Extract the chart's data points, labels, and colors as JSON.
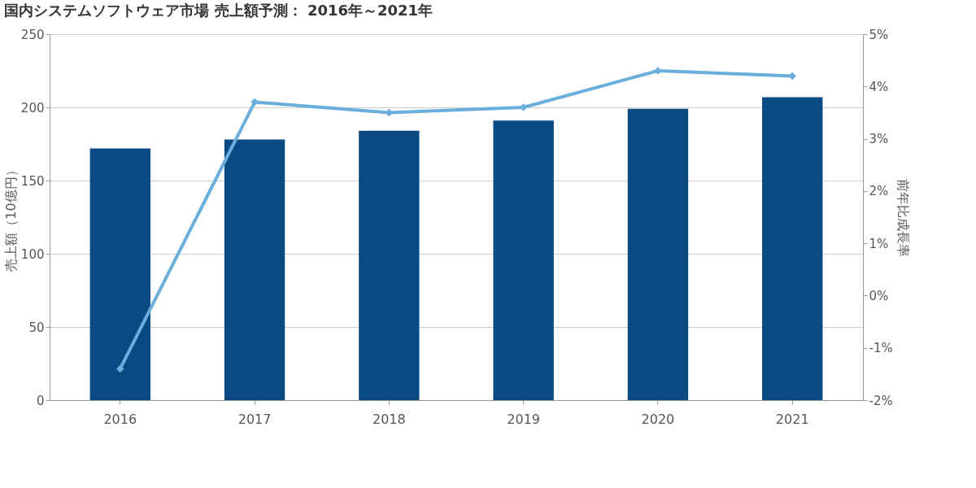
{
  "chart_data": {
    "type": "bar",
    "title": "国内システムソフトウェア市場 売上額予測： 2016年～2021年",
    "ylabel": "売上額（10億円）",
    "y2label": "前年比成長率",
    "categories": [
      "2016",
      "2017",
      "2018",
      "2019",
      "2020",
      "2021"
    ],
    "series": [
      {
        "color": "#0a4a82",
        "values": [
          172,
          178,
          184,
          191,
          199,
          207
        ]
      },
      {
        "type": "line",
        "axis": "y2",
        "color": "#6aaedc",
        "marker": "diamond",
        "values": [
          -1.4,
          3.7,
          3.5,
          3.6,
          4.3,
          4.2
        ]
      }
    ],
    "ylim": [
      0,
      250
    ],
    "yticks": [
      0,
      50,
      100,
      150,
      200,
      250
    ],
    "y2lim": [
      -2,
      5
    ],
    "y2ticks": [
      {
        "value": -2,
        "label": "-2%"
      },
      {
        "value": -1,
        "label": "-1%"
      },
      {
        "value": 0,
        "label": "0%"
      },
      {
        "value": 1,
        "label": "1%"
      },
      {
        "value": 2,
        "label": "2%"
      },
      {
        "value": 3,
        "label": "3%"
      },
      {
        "value": 4,
        "label": "4%"
      },
      {
        "value": 5,
        "label": "5%"
      }
    ],
    "grid": "y"
  }
}
